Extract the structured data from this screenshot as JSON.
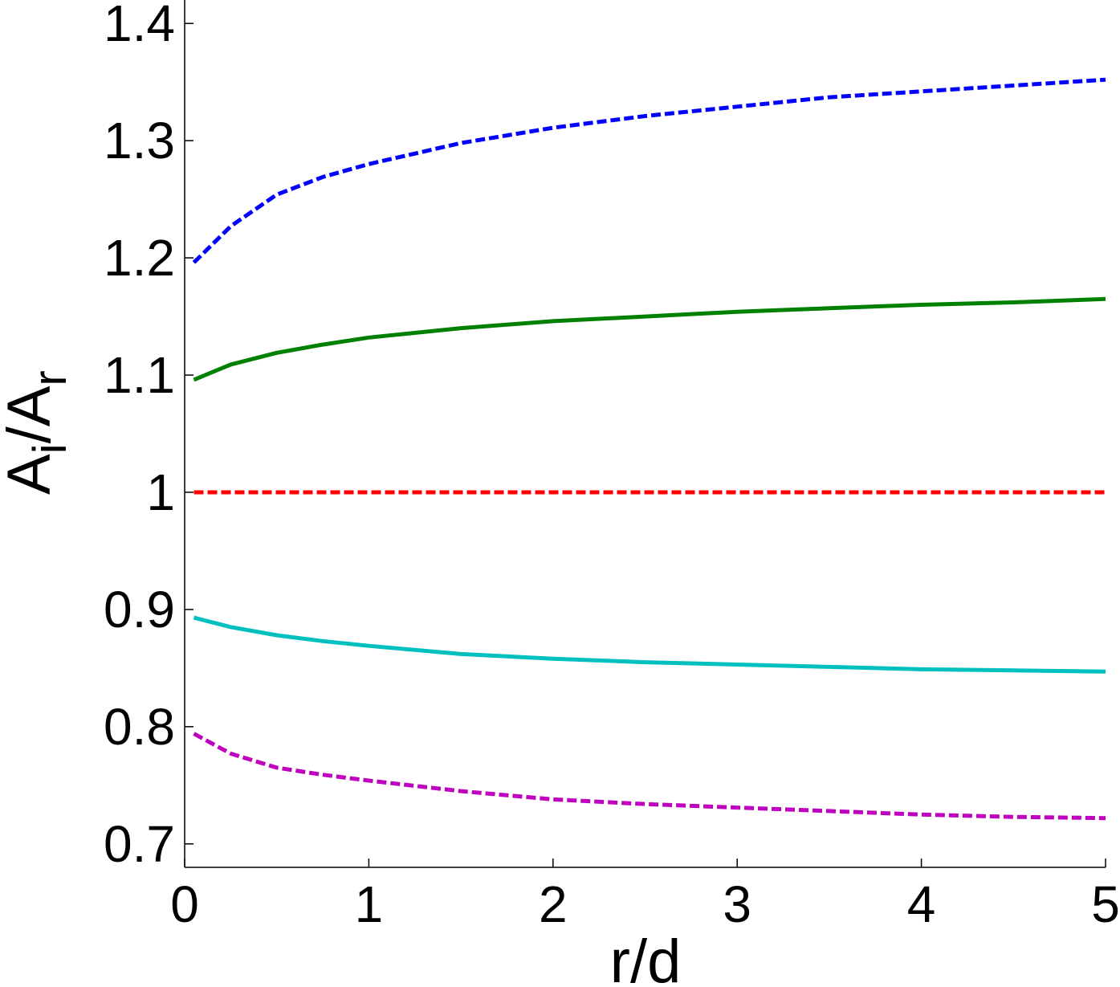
{
  "chart_data": {
    "type": "line",
    "title": "",
    "xlabel": "r/d",
    "ylabel": {
      "base": "A",
      "sub1": "i",
      "slash": "/A",
      "sub2": "r"
    },
    "xlim": [
      0,
      5
    ],
    "ylim": [
      0.68,
      1.42
    ],
    "xticks": [
      "0",
      "1",
      "2",
      "3",
      "4",
      "5"
    ],
    "xtick_values": [
      0,
      1,
      2,
      3,
      4,
      5
    ],
    "yticks": [
      "0.7",
      "0.8",
      "0.9",
      "1",
      "1.1",
      "1.2",
      "1.3",
      "1.4"
    ],
    "ytick_values": [
      0.7,
      0.8,
      0.9,
      1.0,
      1.1,
      1.2,
      1.3,
      1.4
    ],
    "grid": false,
    "legend": "none",
    "series": [
      {
        "color": "#0000ff",
        "style": "dashed",
        "x": [
          0.05,
          0.25,
          0.5,
          0.75,
          1.0,
          1.5,
          2.0,
          2.5,
          3.0,
          3.5,
          4.0,
          4.5,
          5.0
        ],
        "y": [
          1.196,
          1.227,
          1.254,
          1.269,
          1.28,
          1.298,
          1.311,
          1.321,
          1.329,
          1.337,
          1.342,
          1.347,
          1.352
        ]
      },
      {
        "color": "#008000",
        "style": "solid",
        "x": [
          0.05,
          0.25,
          0.5,
          0.75,
          1.0,
          1.5,
          2.0,
          2.5,
          3.0,
          3.5,
          4.0,
          4.5,
          5.0
        ],
        "y": [
          1.096,
          1.109,
          1.119,
          1.126,
          1.132,
          1.14,
          1.146,
          1.15,
          1.154,
          1.157,
          1.16,
          1.162,
          1.165
        ]
      },
      {
        "color": "#ff0000",
        "style": "dashed",
        "x": [
          0.05,
          5.0
        ],
        "y": [
          1.0,
          1.0
        ]
      },
      {
        "color": "#00bfbf",
        "style": "solid",
        "x": [
          0.05,
          0.25,
          0.5,
          0.75,
          1.0,
          1.5,
          2.0,
          2.5,
          3.0,
          3.5,
          4.0,
          4.5,
          5.0
        ],
        "y": [
          0.893,
          0.885,
          0.878,
          0.873,
          0.869,
          0.862,
          0.858,
          0.855,
          0.853,
          0.851,
          0.849,
          0.848,
          0.847
        ]
      },
      {
        "color": "#bf00bf",
        "style": "dashed",
        "x": [
          0.05,
          0.25,
          0.5,
          0.75,
          1.0,
          1.5,
          2.0,
          2.5,
          3.0,
          3.5,
          4.0,
          4.5,
          5.0
        ],
        "y": [
          0.794,
          0.777,
          0.765,
          0.759,
          0.754,
          0.745,
          0.738,
          0.734,
          0.731,
          0.728,
          0.725,
          0.723,
          0.722
        ]
      }
    ]
  }
}
